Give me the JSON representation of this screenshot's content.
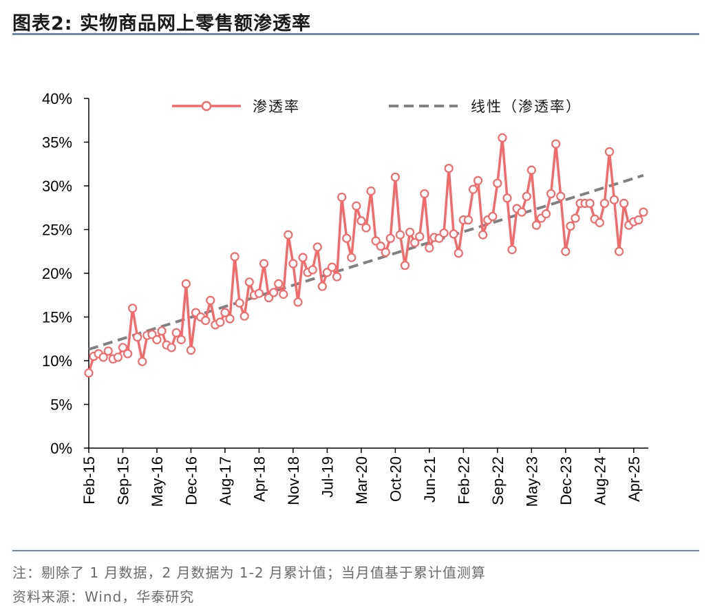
{
  "header": {
    "title": "图表2:  实物商品网上零售额渗透率"
  },
  "footer": {
    "note": "注：剔除了 1 月数据，2 月数据为 1-2 月累计值；当月值基于累计值测算",
    "source": "资料来源：Wind，华泰研究"
  },
  "colors": {
    "series_line": "#f46a6a",
    "trend_line": "#808080",
    "rule": "#6f87a6"
  },
  "chart_data": {
    "type": "line",
    "title": "",
    "xlabel": "",
    "ylabel": "",
    "ylim": [
      0,
      40
    ],
    "y_ticks": [
      "0%",
      "5%",
      "10%",
      "15%",
      "20%",
      "25%",
      "30%",
      "35%",
      "40%"
    ],
    "x_ticks": [
      "Feb-15",
      "Sep-15",
      "May-16",
      "Dec-16",
      "Aug-17",
      "Apr-18",
      "Nov-18",
      "Jul-19",
      "Mar-20",
      "Oct-20",
      "Jun-21",
      "Feb-22",
      "Sep-22",
      "May-23",
      "Dec-23",
      "Aug-24",
      "Apr-25"
    ],
    "legend_position": "top",
    "series": [
      {
        "name": "渗透率",
        "marker": "circle",
        "x": [
          "Feb-15",
          "Mar-15",
          "Apr-15",
          "May-15",
          "Jun-15",
          "Jul-15",
          "Aug-15",
          "Sep-15",
          "Oct-15",
          "Nov-15",
          "Dec-15",
          "Feb-16",
          "Mar-16",
          "Apr-16",
          "May-16",
          "Jun-16",
          "Jul-16",
          "Aug-16",
          "Sep-16",
          "Oct-16",
          "Nov-16",
          "Dec-16",
          "Feb-17",
          "Mar-17",
          "Apr-17",
          "May-17",
          "Jun-17",
          "Jul-17",
          "Aug-17",
          "Sep-17",
          "Oct-17",
          "Nov-17",
          "Dec-17",
          "Feb-18",
          "Mar-18",
          "Apr-18",
          "May-18",
          "Jun-18",
          "Jul-18",
          "Aug-18",
          "Sep-18",
          "Oct-18",
          "Nov-18",
          "Dec-18",
          "Feb-19",
          "Mar-19",
          "Apr-19",
          "May-19",
          "Jun-19",
          "Jul-19",
          "Aug-19",
          "Sep-19",
          "Oct-19",
          "Nov-19",
          "Dec-19",
          "Feb-20",
          "Mar-20",
          "Apr-20",
          "May-20",
          "Jun-20",
          "Jul-20",
          "Aug-20",
          "Sep-20",
          "Oct-20",
          "Nov-20",
          "Dec-20",
          "Feb-21",
          "Mar-21",
          "Apr-21",
          "May-21",
          "Jun-21",
          "Jul-21",
          "Aug-21",
          "Sep-21",
          "Oct-21",
          "Nov-21",
          "Dec-21",
          "Feb-22",
          "Mar-22",
          "Apr-22",
          "May-22",
          "Jun-22",
          "Jul-22",
          "Aug-22",
          "Sep-22",
          "Oct-22",
          "Nov-22",
          "Dec-22",
          "Feb-23",
          "Mar-23",
          "Apr-23",
          "May-23",
          "Jun-23",
          "Jul-23",
          "Aug-23",
          "Sep-23",
          "Oct-23",
          "Nov-23",
          "Dec-23",
          "Feb-24",
          "Mar-24",
          "Apr-24",
          "May-24",
          "Jun-24",
          "Jul-24",
          "Aug-24",
          "Sep-24",
          "Oct-24",
          "Nov-24",
          "Dec-24",
          "Feb-25",
          "Mar-25",
          "Apr-25",
          "May-25",
          "Jun-25"
        ],
        "values": [
          8.6,
          10.5,
          10.8,
          10.4,
          11.1,
          10.2,
          10.4,
          11.5,
          10.8,
          16.0,
          12.7,
          9.9,
          12.9,
          13.0,
          12.4,
          13.4,
          11.8,
          11.5,
          13.2,
          12.4,
          18.8,
          11.2,
          15.5,
          15.0,
          14.6,
          16.9,
          14.1,
          14.4,
          15.5,
          14.8,
          21.9,
          16.6,
          15.1,
          19.0,
          17.5,
          17.7,
          21.1,
          17.2,
          17.8,
          18.8,
          17.6,
          24.4,
          21.1,
          16.7,
          21.8,
          20.1,
          20.4,
          23.0,
          18.5,
          20.1,
          20.7,
          19.6,
          28.7,
          24.0,
          21.8,
          27.7,
          26.0,
          25.2,
          29.4,
          23.7,
          23.1,
          22.4,
          24.0,
          31.0,
          24.4,
          20.9,
          24.7,
          23.5,
          24.2,
          29.1,
          22.9,
          24.1,
          24.0,
          24.6,
          32.0,
          24.5,
          22.3,
          26.1,
          26.1,
          29.6,
          30.6,
          24.4,
          26.1,
          26.5,
          30.3,
          35.5,
          28.6,
          22.7,
          27.4,
          27.0,
          28.8,
          31.8,
          25.5,
          26.3,
          26.8,
          29.1,
          34.8,
          28.8,
          22.5,
          25.4,
          26.3,
          28.0,
          28.0,
          28.0,
          26.2,
          25.8,
          28.0,
          33.9,
          28.4,
          22.5,
          28.0,
          25.5,
          25.9,
          26.1,
          27.0
        ]
      },
      {
        "name": "线性（渗透率）",
        "style": "dashed",
        "start": 11.3,
        "end": 31.2
      }
    ]
  }
}
